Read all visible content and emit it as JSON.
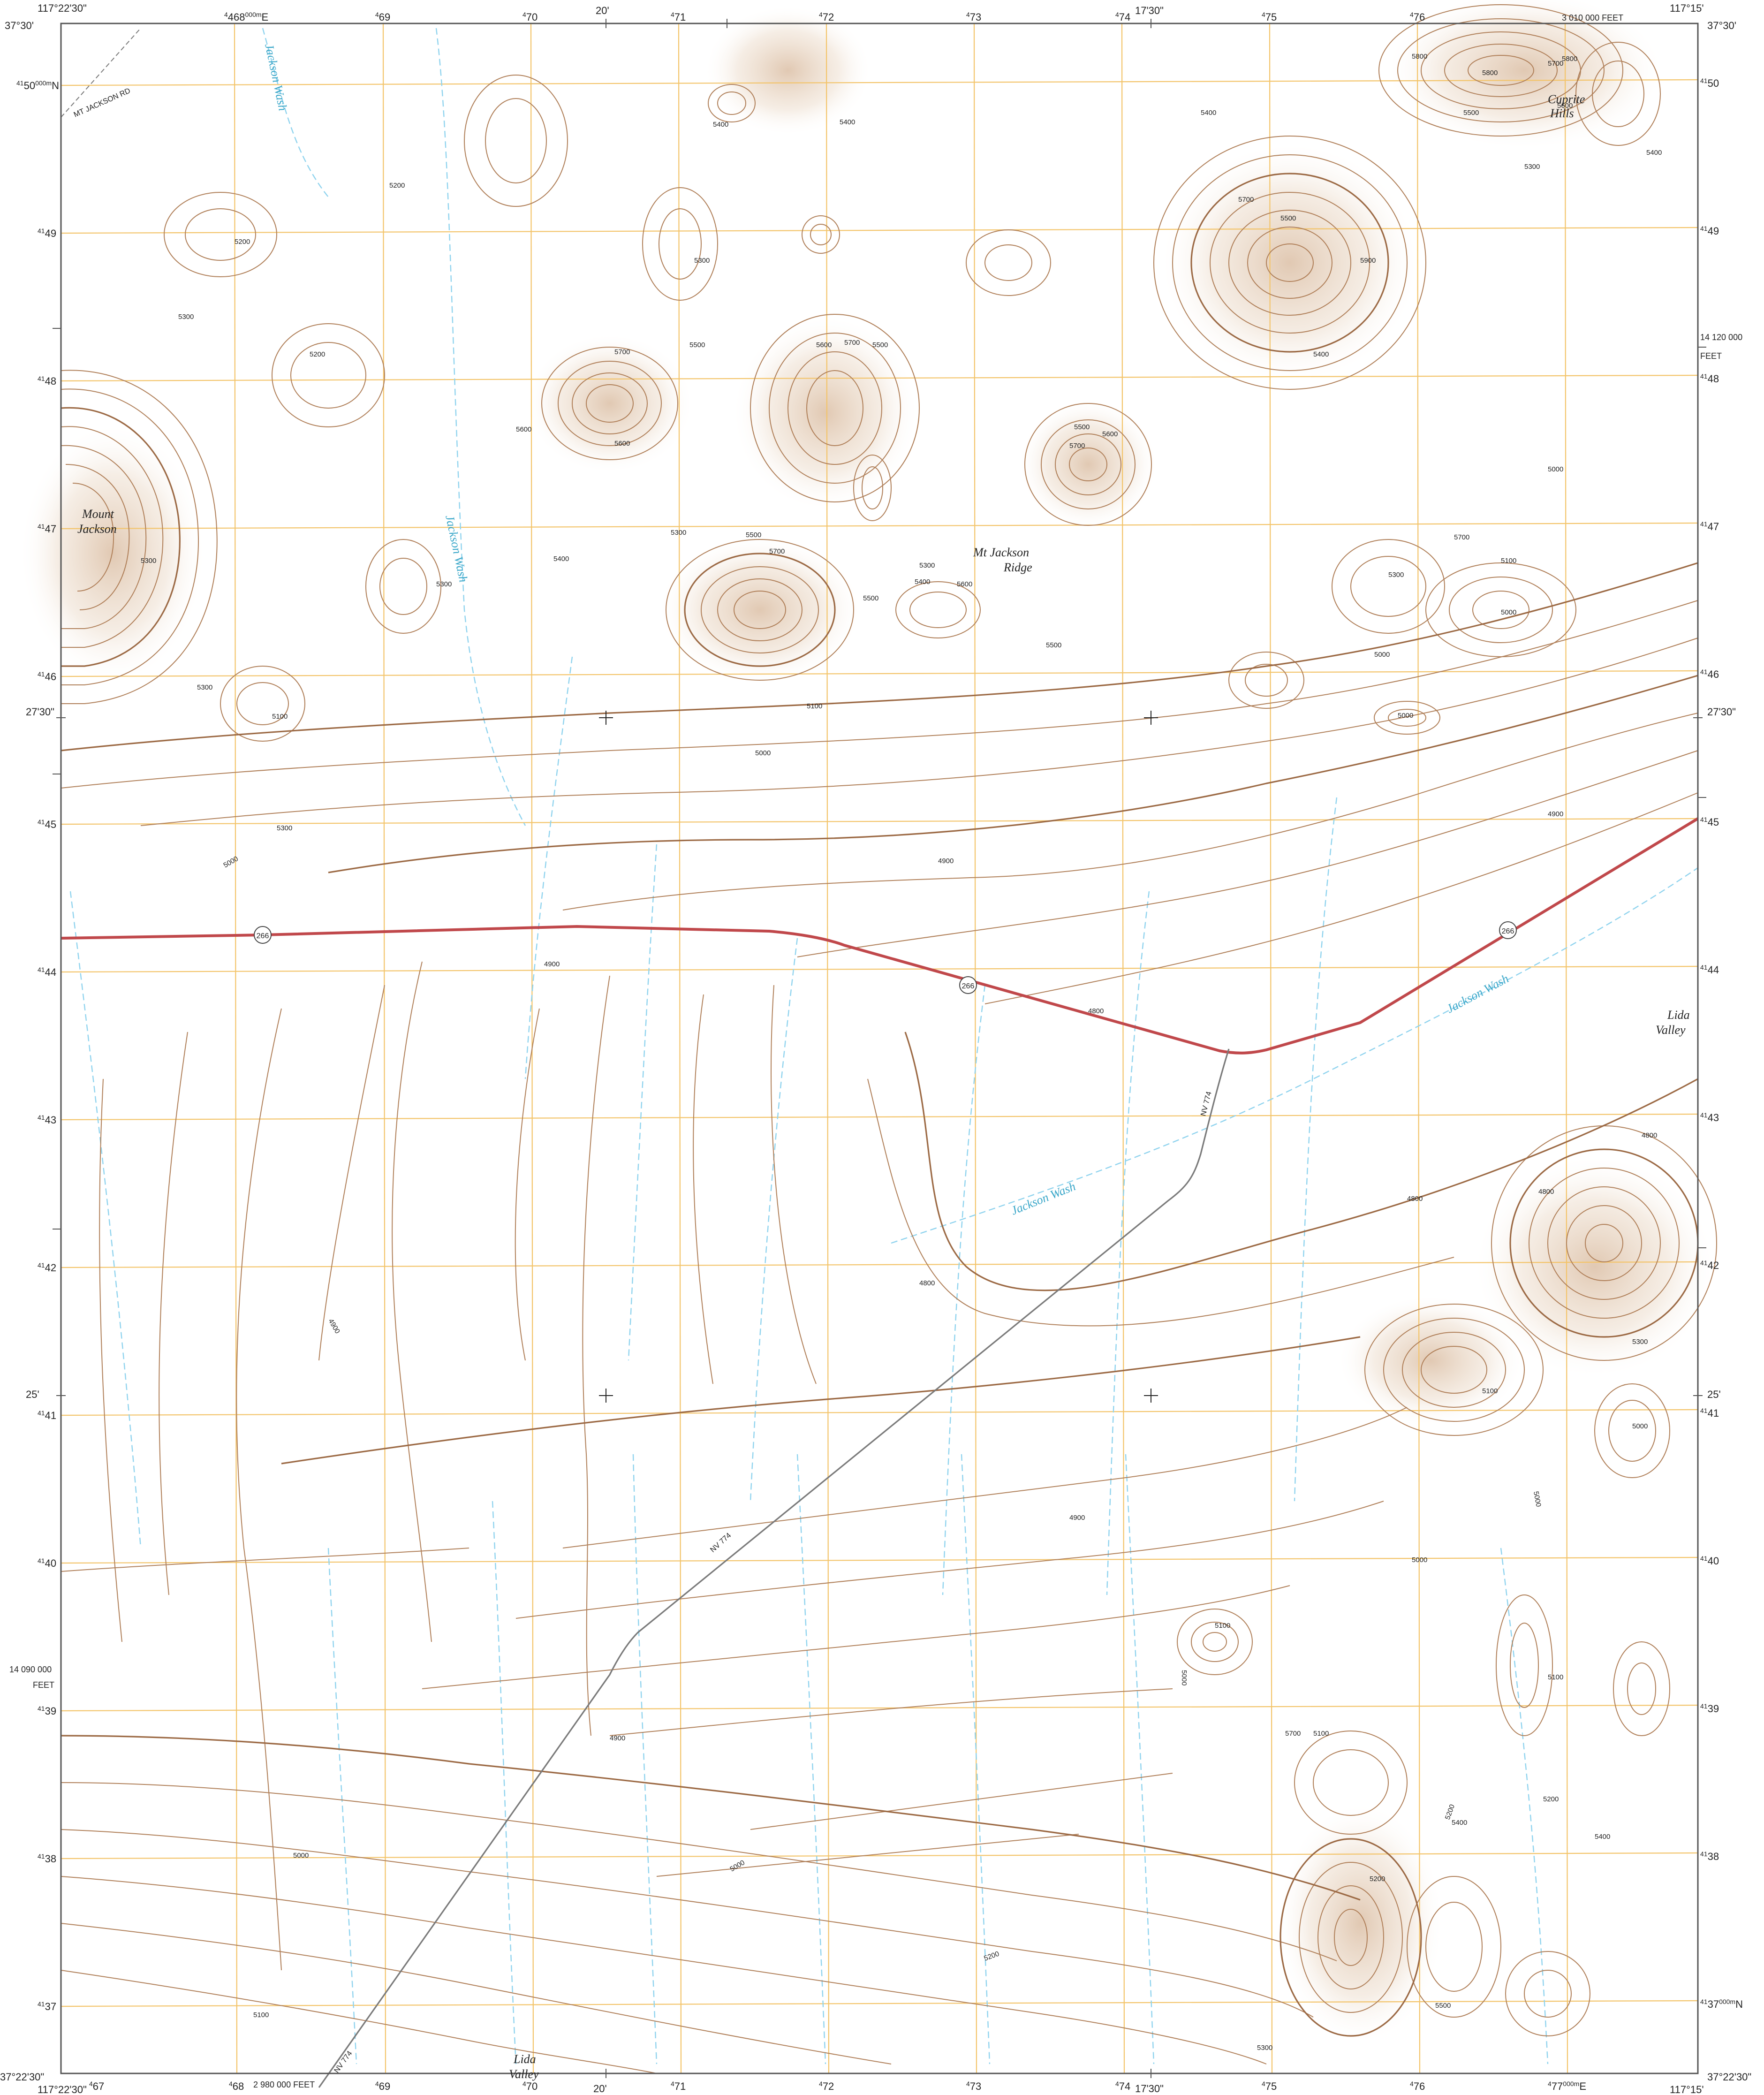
{
  "map": {
    "colors": {
      "background": "#ffffff",
      "contour": "#b0805a",
      "contour_index": "#9c6a45",
      "relief": "#d9b896",
      "grid": "#f3c46a",
      "water": "#8fd3ee",
      "water_label": "#3aa7c9",
      "highway": "#c0484b",
      "road": "#7a7a7a",
      "neatline": "#555555",
      "text": "#222222"
    },
    "corners": {
      "top_left_lon": "117°22'30\"",
      "top_left_lat": "37°30'",
      "top_right_lon": "117°15'",
      "top_right_lat": "37°30'",
      "bottom_left_lon": "117°22'30\"",
      "bottom_left_lat": "37°22'30\"",
      "bottom_right_lon": "117°15'",
      "bottom_right_lat": "37°22'30\""
    },
    "top_ticks": [
      "468000mE",
      "469",
      "470",
      "20'",
      "471",
      "472",
      "473",
      "474",
      "17'30\"",
      "475",
      "476"
    ],
    "top_tick_labels": {
      "t468": "468",
      "t468sfx": "000m",
      "t468e": "E",
      "t469": "69",
      "t470": "70",
      "m20": "20'",
      "t471": "71",
      "t472": "72",
      "t473": "73",
      "t474": "74",
      "m1730": "17'30\"",
      "t475": "75",
      "t476": "76",
      "feet_top": "3 010 000 FEET"
    },
    "bottom_tick_labels": {
      "t467": "67",
      "t468": "68",
      "feet_bottom": "2 980 000 FEET",
      "t469": "69",
      "t470": "70",
      "m20": "20'",
      "t471": "71",
      "t472": "72",
      "t473": "73",
      "t474": "74",
      "m1730": "17'30\"",
      "t475": "75",
      "t476": "76",
      "t477": "77",
      "t477sfx": "000m",
      "t477e": "E",
      "small4": "4"
    },
    "left_labels": {
      "n4150": "50",
      "n4150sfx": "000m",
      "n4150n": "N",
      "n4149": "49",
      "n4148": "48",
      "n4147": "47",
      "n4146": "46",
      "lat2730": "27'30\"",
      "n4145": "45",
      "n4144": "44",
      "n4143": "43",
      "n4142": "42",
      "lat25": "25'",
      "n4141": "41",
      "n4140": "40",
      "feet_left": "14 090 000",
      "feet_left_unit": "FEET",
      "n4139": "39",
      "n4138": "38",
      "n4137": "37",
      "prefix": "41"
    },
    "right_labels": {
      "n4150": "50",
      "n4149": "49",
      "feet_right": "14 120 000",
      "feet_right_unit": "FEET",
      "n4148": "48",
      "n4147": "47",
      "n4146": "46",
      "lat2730": "27'30\"",
      "n4145": "45",
      "n4144": "44",
      "n4143": "43",
      "n4142": "42",
      "lat25": "25'",
      "n4141": "41",
      "n4140": "40",
      "n4139": "39",
      "n4138": "38",
      "n4137": "37",
      "n4137sfx": "000m",
      "n4137n": "N",
      "prefix": "41"
    },
    "features": {
      "mount_jackson_1": "Mount",
      "mount_jackson_2": "Jackson",
      "mt_jackson_ridge_1": "Mt Jackson",
      "mt_jackson_ridge_2": "Ridge",
      "cuprite_hills_1": "Cuprite",
      "cuprite_hills_2": "Hills",
      "lida_valley_east_1": "Lida",
      "lida_valley_east_2": "Valley",
      "lida_valley_south_1": "Lida",
      "lida_valley_south_2": "Valley",
      "jackson_wash_nw": "Jackson Wash",
      "jackson_wash_mid": "Jackson Wash",
      "jackson_wash_ne": "Jackson Wash",
      "jackson_wash_center": "Jackson Wash",
      "mt_jackson_rd": "MT JACKSON RD"
    },
    "roads": {
      "shield_266": "266",
      "nv774": "NV 774"
    },
    "contour_labels": {
      "c4900a": "4900",
      "c4900b": "4900",
      "c4900c": "4900",
      "c4900d": "4900",
      "c4900e": "4900",
      "c4900f": "4900",
      "c4800a": "4800",
      "c4800b": "4800",
      "c4800c": "4800",
      "c4800d": "4800",
      "c4800e": "4800",
      "c5000a": "5000",
      "c5000b": "5000",
      "c5000c": "5000",
      "c5000d": "5000",
      "c5000e": "5000",
      "c5000f": "5000",
      "c5000g": "5000",
      "c5000h": "5000",
      "c5000i": "5000",
      "c5000j": "5000",
      "c5000k": "5000",
      "c5000l": "5000",
      "c5100a": "5100",
      "c5100b": "5100",
      "c5100c": "5100",
      "c5100d": "5100",
      "c5100e": "5100",
      "c5100f": "5100",
      "c5100g": "5100",
      "c5100h": "5100",
      "c5200a": "5200",
      "c5200b": "5200",
      "c5200c": "5200",
      "c5200d": "5200",
      "c5200e": "5200",
      "c5200f": "5200",
      "c5200g": "5200",
      "c5300a": "5300",
      "c5300b": "5300",
      "c5300c": "5300",
      "c5300d": "5300",
      "c5300e": "5300",
      "c5300f": "5300",
      "c5300g": "5300",
      "c5300h": "5300",
      "c5300i": "5300",
      "c5300j": "5300",
      "c5300k": "5300",
      "c5300l": "5300",
      "c5400a": "5400",
      "c5400b": "5400",
      "c5400c": "5400",
      "c5400d": "5400",
      "c5400e": "5400",
      "c5400f": "5400",
      "c5400g": "5400",
      "c5400h": "5400",
      "c5400i": "5400",
      "c5500a": "5500",
      "c5500b": "5500",
      "c5500c": "5500",
      "c5500d": "5500",
      "c5500e": "5500",
      "c5500f": "5500",
      "c5500g": "5500",
      "c5500h": "5500",
      "c5500i": "5500",
      "c5600a": "5600",
      "c5600b": "5600",
      "c5600c": "5600",
      "c5600d": "5600",
      "c5600e": "5600",
      "c5600f": "5600",
      "c5700a": "5700",
      "c5700b": "5700",
      "c5700c": "5700",
      "c5700d": "5700",
      "c5700e": "5700",
      "c5700f": "5700",
      "c5700g": "5700",
      "c5700h": "5700",
      "c5800a": "5800",
      "c5800b": "5800",
      "c5800c": "5800",
      "c5900a": "5900"
    }
  }
}
